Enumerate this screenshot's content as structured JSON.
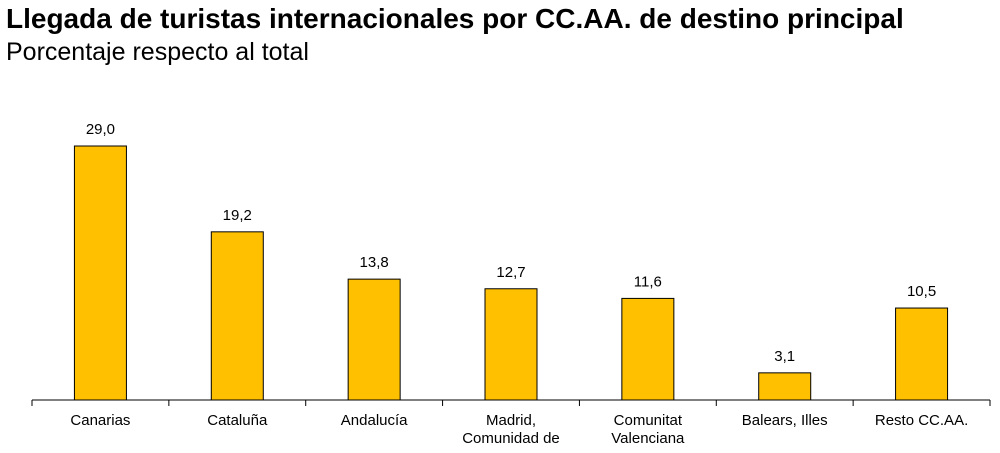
{
  "chart_data": {
    "type": "bar",
    "title": "Llegada de turistas internacionales por CC.AA. de destino principal",
    "subtitle": "Porcentaje respecto al total",
    "categories": [
      [
        "Canarias"
      ],
      [
        "Cataluña"
      ],
      [
        "Andalucía"
      ],
      [
        "Madrid,",
        "Comunidad de"
      ],
      [
        "Comunitat",
        "Valenciana"
      ],
      [
        "Balears, Illes"
      ],
      [
        "Resto CC.AA."
      ]
    ],
    "values": [
      29.0,
      19.2,
      13.8,
      12.7,
      11.6,
      3.1,
      10.5
    ],
    "data_labels": [
      "29,0",
      "19,2",
      "13,8",
      "12,7",
      "11,6",
      "3,1",
      "10,5"
    ],
    "ylim": [
      0,
      30
    ],
    "grid": false,
    "legend": "none",
    "bar_color": "#FFC000",
    "bar_edge_color": "#000000"
  }
}
